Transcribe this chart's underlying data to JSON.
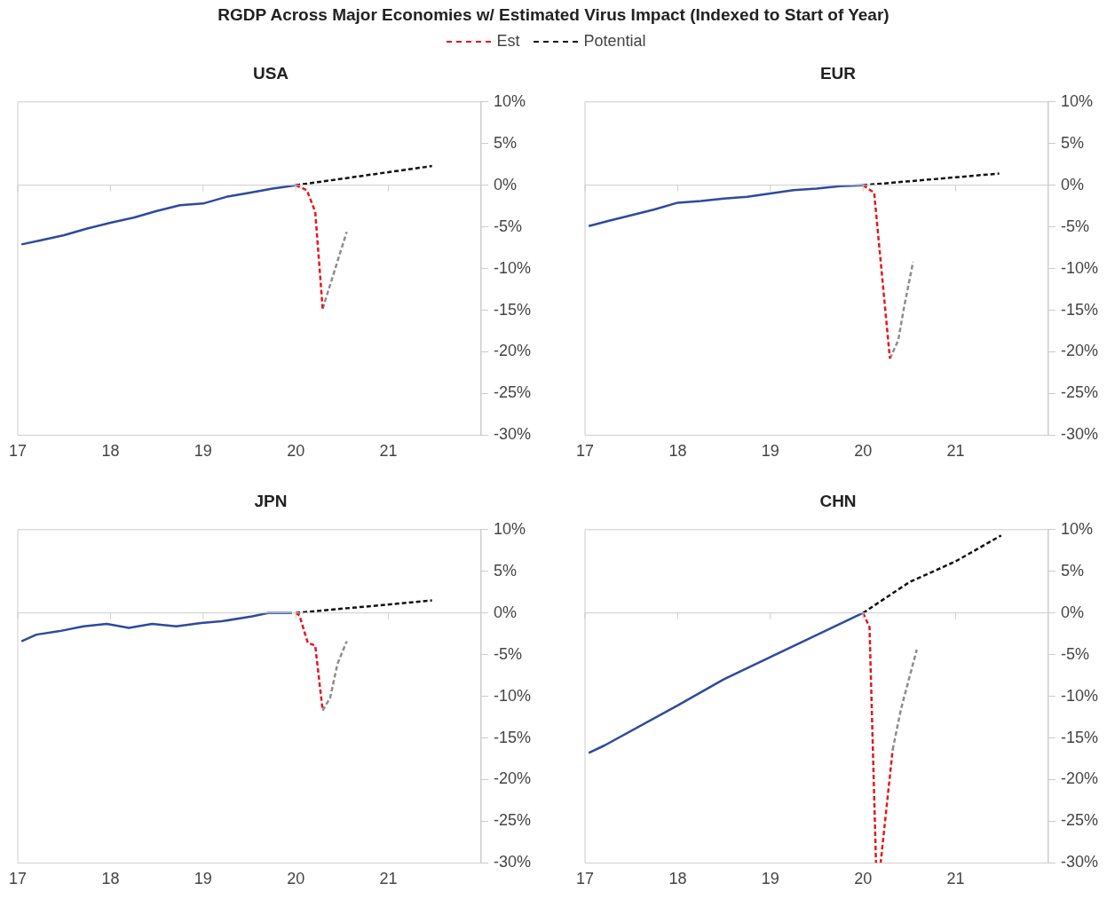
{
  "chart_data": [
    {
      "type": "line",
      "title": "USA",
      "annotations": [
        "RGDP Across Major Economies w/ Estimated Virus Impact (Indexed to Start of Year)"
      ],
      "legend": "top",
      "xlim": [
        17,
        22
      ],
      "xticks": [
        17,
        18,
        19,
        20,
        21
      ],
      "ylim": [
        -30,
        10
      ],
      "yticks": [
        {
          "value": 10,
          "label": "10%"
        },
        {
          "value": 5,
          "label": "5%"
        },
        {
          "value": 0,
          "label": "0%"
        },
        {
          "value": -5,
          "label": "-5%"
        },
        {
          "value": -10,
          "label": "-10%"
        },
        {
          "value": -15,
          "label": "-15%"
        },
        {
          "value": -20,
          "label": "-20%"
        },
        {
          "value": -25,
          "label": "-25%"
        },
        {
          "value": -30,
          "label": "-30%"
        }
      ],
      "series": [
        {
          "color": "#2e4a9e",
          "line_style": "solid",
          "x": [
            17.04,
            17.25,
            17.5,
            17.75,
            18,
            18.25,
            18.5,
            18.75,
            19,
            19.25,
            19.5,
            19.75,
            20
          ],
          "values": [
            -7.1,
            -6.6,
            -6.0,
            -5.2,
            -4.5,
            -3.9,
            -3.1,
            -2.4,
            -2.2,
            -1.4,
            -0.9,
            -0.4,
            0
          ]
        },
        {
          "name": "Est",
          "color": "#e8151b",
          "line_style": "dashed",
          "x": [
            20,
            20.12,
            20.21,
            20.29
          ],
          "values": [
            0,
            -0.6,
            -3.2,
            -14.8
          ]
        },
        {
          "name": "Potential",
          "color": "#111111",
          "line_style": "dashed",
          "x": [
            20,
            21.47
          ],
          "values": [
            0,
            2.3
          ]
        },
        {
          "color": "#8c8c8c",
          "line_style": "dashed",
          "x": [
            20.29,
            20.55
          ],
          "values": [
            -14.8,
            -5.6
          ]
        }
      ]
    },
    {
      "type": "line",
      "title": "EUR",
      "xlim": [
        17,
        22
      ],
      "xticks": [
        17,
        18,
        19,
        20,
        21
      ],
      "ylim": [
        -30,
        10
      ],
      "yticks": [
        {
          "value": 10,
          "label": "10%"
        },
        {
          "value": 5,
          "label": "5%"
        },
        {
          "value": 0,
          "label": "0%"
        },
        {
          "value": -5,
          "label": "-5%"
        },
        {
          "value": -10,
          "label": "-10%"
        },
        {
          "value": -15,
          "label": "-15%"
        },
        {
          "value": -20,
          "label": "-20%"
        },
        {
          "value": -25,
          "label": "-25%"
        },
        {
          "value": -30,
          "label": "-30%"
        }
      ],
      "series": [
        {
          "color": "#2e4a9e",
          "line_style": "solid",
          "x": [
            17.04,
            17.25,
            17.5,
            17.75,
            18,
            18.25,
            18.5,
            18.75,
            19,
            19.25,
            19.5,
            19.75,
            20
          ],
          "values": [
            -4.9,
            -4.3,
            -3.6,
            -2.9,
            -2.1,
            -1.9,
            -1.6,
            -1.4,
            -1.0,
            -0.6,
            -0.4,
            -0.1,
            0
          ]
        },
        {
          "color": "#e8151b",
          "line_style": "dashed",
          "x": [
            20,
            20.12,
            20.29
          ],
          "values": [
            0,
            -0.9,
            -20.8
          ]
        },
        {
          "color": "#111111",
          "line_style": "dashed",
          "x": [
            20,
            21.47
          ],
          "values": [
            0,
            1.4
          ]
        },
        {
          "color": "#8c8c8c",
          "line_style": "dashed",
          "x": [
            20.29,
            20.38,
            20.44,
            20.54
          ],
          "values": [
            -20.8,
            -18.6,
            -14.8,
            -9.2
          ]
        }
      ]
    },
    {
      "type": "line",
      "title": "JPN",
      "xlim": [
        17,
        22
      ],
      "xticks": [
        17,
        18,
        19,
        20,
        21
      ],
      "ylim": [
        -30,
        10
      ],
      "yticks": [
        {
          "value": 10,
          "label": "10%"
        },
        {
          "value": 5,
          "label": "5%"
        },
        {
          "value": 0,
          "label": "0%"
        },
        {
          "value": -5,
          "label": "-5%"
        },
        {
          "value": -10,
          "label": "-10%"
        },
        {
          "value": -15,
          "label": "-15%"
        },
        {
          "value": -20,
          "label": "-20%"
        },
        {
          "value": -25,
          "label": "-25%"
        },
        {
          "value": -30,
          "label": "-30%"
        }
      ],
      "series": [
        {
          "color": "#2e4a9e",
          "line_style": "solid",
          "x": [
            17.04,
            17.2,
            17.44,
            17.71,
            17.96,
            18.2,
            18.45,
            18.71,
            18.98,
            19.2,
            19.53,
            19.7,
            19.96
          ],
          "values": [
            -3.4,
            -2.6,
            -2.2,
            -1.6,
            -1.3,
            -1.8,
            -1.3,
            -1.6,
            -1.2,
            -1.0,
            -0.4,
            0,
            0
          ]
        },
        {
          "color": "#e8151b",
          "line_style": "dashed",
          "x": [
            20,
            20.04,
            20.13,
            20.21,
            20.29
          ],
          "values": [
            0,
            -0.3,
            -3.6,
            -3.9,
            -11.7
          ]
        },
        {
          "color": "#111111",
          "line_style": "dashed",
          "x": [
            20,
            21.47
          ],
          "values": [
            0,
            1.5
          ]
        },
        {
          "color": "#8c8c8c",
          "line_style": "dashed",
          "x": [
            20.29,
            20.37,
            20.45,
            20.55
          ],
          "values": [
            -11.7,
            -10.2,
            -6.1,
            -3.4
          ]
        }
      ]
    },
    {
      "type": "line",
      "title": "CHN",
      "xlim": [
        17,
        22
      ],
      "xticks": [
        17,
        18,
        19,
        20,
        21
      ],
      "ylim": [
        -30,
        10
      ],
      "yticks": [
        {
          "value": 10,
          "label": "10%"
        },
        {
          "value": 5,
          "label": "5%"
        },
        {
          "value": 0,
          "label": "0%"
        },
        {
          "value": -5,
          "label": "-5%"
        },
        {
          "value": -10,
          "label": "-10%"
        },
        {
          "value": -15,
          "label": "-15%"
        },
        {
          "value": -20,
          "label": "-20%"
        },
        {
          "value": -25,
          "label": "-25%"
        },
        {
          "value": -30,
          "label": "-30%"
        }
      ],
      "series": [
        {
          "color": "#2e4a9e",
          "line_style": "solid",
          "x": [
            17.04,
            17.21,
            18,
            18.49,
            19,
            20
          ],
          "values": [
            -16.8,
            -15.9,
            -11.1,
            -8.0,
            -5.3,
            0
          ]
        },
        {
          "color": "#e8151b",
          "line_style": "dashed",
          "x": [
            20,
            20.07,
            20.14,
            20.19,
            20.32
          ],
          "values": [
            0,
            -1.7,
            -30,
            -30,
            -16.4
          ]
        },
        {
          "color": "#111111",
          "line_style": "dashed",
          "x": [
            20,
            20.5,
            21,
            21.49
          ],
          "values": [
            0,
            3.7,
            6.2,
            9.3
          ]
        },
        {
          "color": "#8c8c8c",
          "line_style": "dashed",
          "x": [
            20.32,
            20.41,
            20.58
          ],
          "values": [
            -16.4,
            -11.5,
            -4.4
          ]
        }
      ]
    }
  ]
}
